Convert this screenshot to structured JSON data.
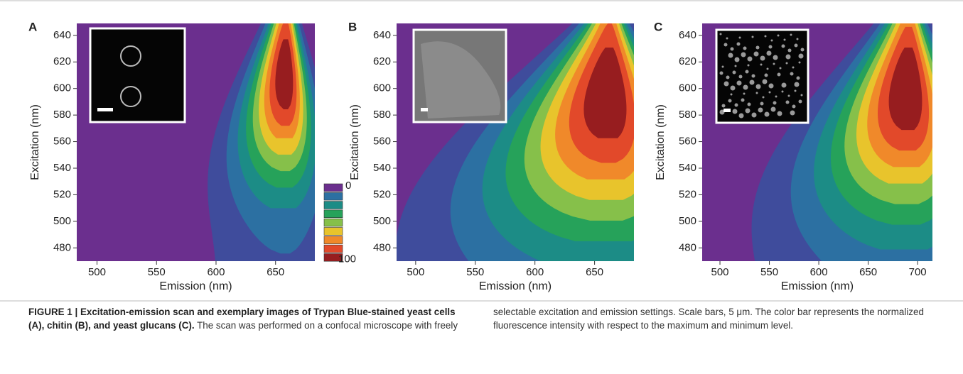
{
  "panels": [
    {
      "label": "A",
      "xlabel": "Emission (nm)",
      "ylabel": "Excitation (nm)",
      "xlim": [
        483,
        683
      ],
      "ylim": [
        470,
        649
      ],
      "xticks": [
        500,
        550,
        600,
        650
      ],
      "yticks": [
        480,
        500,
        520,
        540,
        560,
        580,
        600,
        620,
        640
      ]
    },
    {
      "label": "B",
      "xlabel": "Emission (nm)",
      "ylabel": "Excitation (nm)",
      "xlim": [
        484,
        683
      ],
      "ylim": [
        470,
        649
      ],
      "xticks": [
        500,
        550,
        600,
        650
      ],
      "yticks": [
        480,
        500,
        520,
        540,
        560,
        580,
        600,
        620,
        640
      ]
    },
    {
      "label": "C",
      "xlabel": "Emission (nm)",
      "ylabel": "Excitation (nm)",
      "xlim": [
        482,
        715
      ],
      "ylim": [
        470,
        649
      ],
      "xticks": [
        500,
        550,
        600,
        650,
        700
      ],
      "yticks": [
        480,
        500,
        520,
        540,
        560,
        580,
        600,
        620,
        640
      ]
    }
  ],
  "colorbar": {
    "ticks": [
      0,
      100
    ],
    "colors": [
      "#6b2f8e",
      "#3f4c9c",
      "#2c70a2",
      "#1c8c86",
      "#26a25a",
      "#86c04a",
      "#e8c42c",
      "#f0892a",
      "#e2492a",
      "#971d1f"
    ]
  },
  "caption": {
    "bold": "FIGURE 1 | Excitation-emission scan and exemplary images of Trypan Blue-stained yeast cells (A), chitin (B), and yeast glucans (C).",
    "text": " The scan was performed on a confocal microscope with freely selectable excitation and emission settings. Scale bars, 5 μm. The color bar represents the normalized fluorescence intensity with respect to the maximum and minimum level."
  }
}
